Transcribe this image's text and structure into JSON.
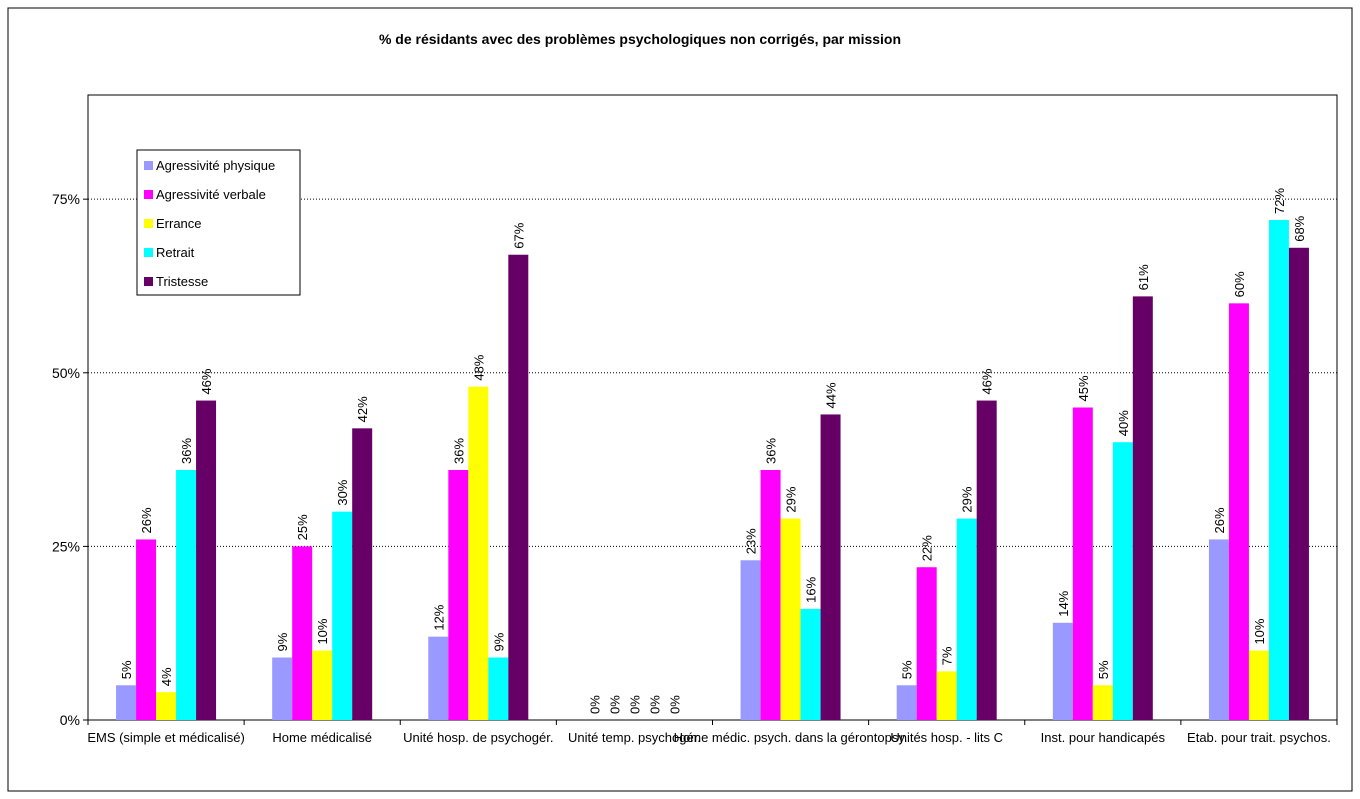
{
  "chart_data": {
    "type": "bar",
    "title": "% de résidants avec des problèmes psychologiques non corrigés, par mission",
    "categories": [
      "EMS (simple et médicalisé)",
      "Home médicalisé",
      "Unité hosp. de psychogér.",
      "Unité temp. psychogér.",
      "Home médic. psych. dans la gérontopsy.",
      "Unités hosp. - lits C",
      "Inst. pour handicapés",
      "Etab. pour trait. psychos."
    ],
    "series": [
      {
        "name": "Agressivité physique",
        "color": "#9999ff",
        "values": [
          5,
          9,
          12,
          0,
          23,
          5,
          14,
          26
        ],
        "value_labels": [
          "5%",
          "9%",
          "12%",
          "0%",
          "23%",
          "5%",
          "14%",
          "26%"
        ]
      },
      {
        "name": "Agressivité verbale",
        "color": "#ff00ff",
        "values": [
          26,
          25,
          36,
          0,
          36,
          22,
          45,
          60
        ],
        "value_labels": [
          "26%",
          "25%",
          "36%",
          "0%",
          "36%",
          "22%",
          "45%",
          "60%"
        ]
      },
      {
        "name": "Errance",
        "color": "#ffff00",
        "values": [
          4,
          10,
          48,
          0,
          29,
          7,
          5,
          10
        ],
        "value_labels": [
          "4%",
          "10%",
          "48%",
          "0%",
          "29%",
          "7%",
          "5%",
          "10%"
        ]
      },
      {
        "name": "Retrait",
        "color": "#00ffff",
        "values": [
          36,
          30,
          9,
          0,
          16,
          29,
          40,
          72
        ],
        "value_labels": [
          "36%",
          "30%",
          "9%",
          "0%",
          "16%",
          "29%",
          "40%",
          "72%"
        ]
      },
      {
        "name": "Tristesse",
        "color": "#660066",
        "values": [
          46,
          42,
          67,
          0,
          44,
          46,
          61,
          68
        ],
        "value_labels": [
          "46%",
          "42%",
          "67%",
          "0%",
          "44%",
          "46%",
          "61%",
          "68%"
        ]
      }
    ],
    "ylim": [
      0,
      90
    ],
    "yticks": [
      {
        "value": 0,
        "label": "0%"
      },
      {
        "value": 25,
        "label": "25%"
      },
      {
        "value": 50,
        "label": "50%"
      },
      {
        "value": 75,
        "label": "75%"
      }
    ],
    "grid": true,
    "legend": "top-left"
  }
}
